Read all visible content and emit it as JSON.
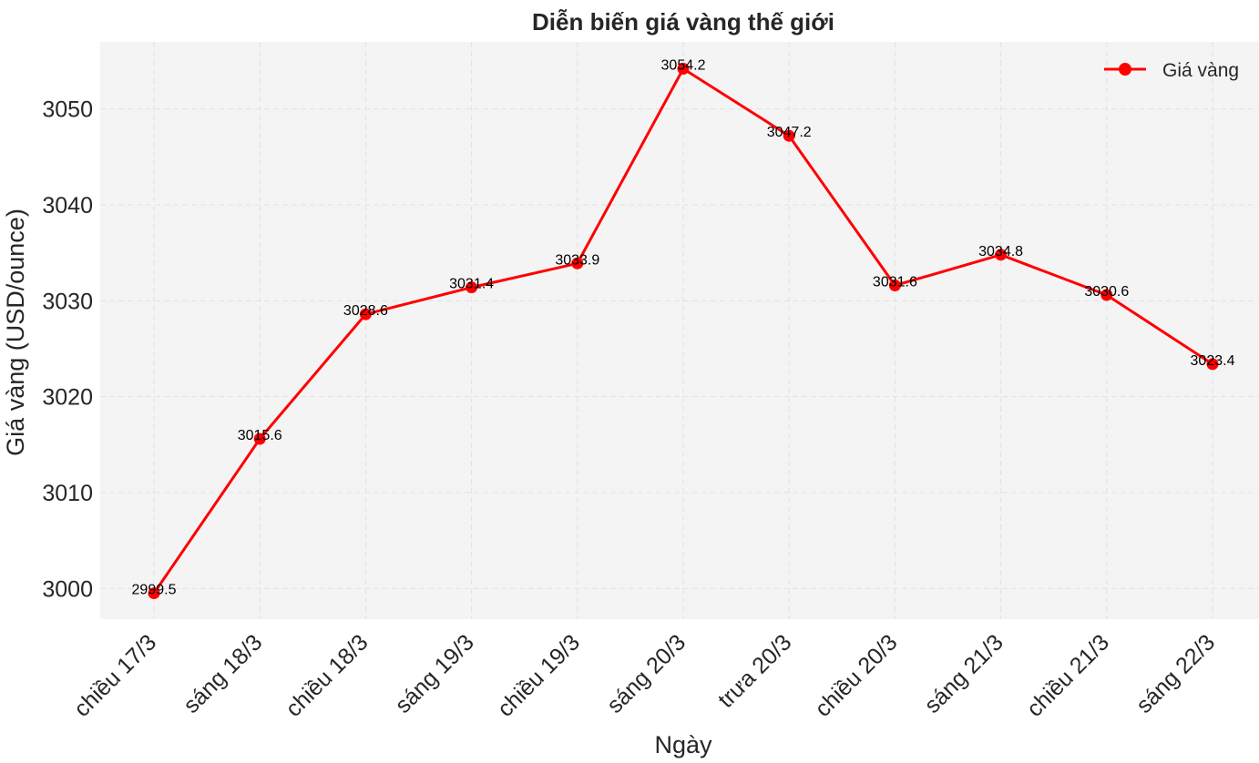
{
  "chart_data": {
    "type": "line",
    "title": "Diễn biến giá vàng thế giới",
    "xlabel": "Ngày",
    "ylabel": "Giá vàng (USD/ounce)",
    "categories": [
      "chiều 17/3",
      "sáng 18/3",
      "chiều 18/3",
      "sáng 19/3",
      "chiều 19/3",
      "sáng 20/3",
      "trưa 20/3",
      "chiều 20/3",
      "sáng 21/3",
      "chiều 21/3",
      "sáng 22/3"
    ],
    "series": [
      {
        "name": "Giá vàng",
        "values": [
          2999.5,
          3015.6,
          3028.6,
          3031.4,
          3033.9,
          3054.2,
          3047.2,
          3031.6,
          3034.8,
          3030.6,
          3023.4
        ],
        "labels": [
          "2999.5",
          "3015.6",
          "3028.6",
          "3031.4",
          "3033.9",
          "3054.2",
          "3047.2",
          "3031.6",
          "3034.8",
          "3030.6",
          "3023.4"
        ],
        "color": "#ff0000"
      }
    ],
    "yticks": [
      3000,
      3010,
      3020,
      3030,
      3040,
      3050
    ],
    "ylim": [
      2996.8,
      3057.0
    ],
    "grid": true,
    "legend_position": "top-right",
    "background_color": "#f4f4f4"
  }
}
